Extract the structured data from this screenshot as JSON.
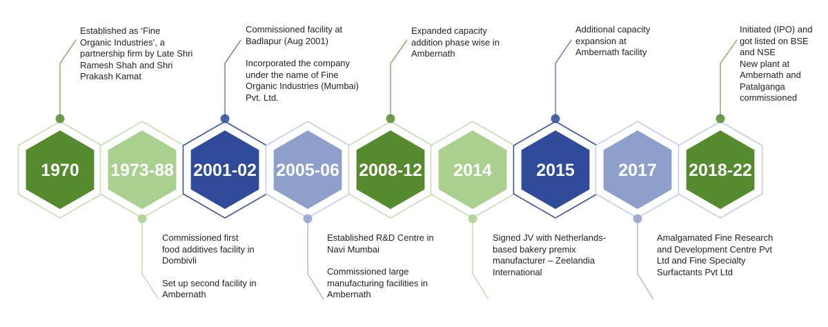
{
  "milestones": [
    {
      "year": "1970",
      "color": "#568a2e",
      "year_color": "#ffffff",
      "position": "top",
      "notes": [
        "Established as ‘Fine\nOrganic  Industries’, a\npartnership firm by Late Shri\nRamesh Shah and Shri\nPrakash Kamat"
      ]
    },
    {
      "year": "1973-88",
      "color": "#a9d08e",
      "year_color": "#ffffff",
      "position": "bottom",
      "notes": [
        "Commissioned  first\nfood additives facility in\nDombivli",
        "Set up second facility in\nAmbernath"
      ]
    },
    {
      "year": "2001-02",
      "color": "#2f4b9a",
      "year_color": "#ffffff",
      "position": "top",
      "notes": [
        "Commissioned facility at\nBadlapur (Aug 2001)",
        "Incorporated the company\nunder the name of Fine\nOrganic Industries (Mumbai)\nPvt. Ltd."
      ]
    },
    {
      "year": "2005-06",
      "color": "#8f9fcc",
      "year_color": "#ffffff",
      "position": "bottom",
      "notes": [
        "Established R&D Centre in\nNavi Mumbai",
        "Commissioned large\nmanufacturing facilities in\nAmbernath"
      ]
    },
    {
      "year": "2008-12",
      "color": "#568a2e",
      "year_color": "#ffffff",
      "position": "top",
      "notes": [
        "Expanded capacity\naddition phase wise in\nAmbernath"
      ]
    },
    {
      "year": "2014",
      "color": "#a9d08e",
      "year_color": "#ffffff",
      "position": "bottom",
      "notes": [
        "Signed JV with Netherlands-\nbased bakery premix\nmanufacturer – Zeelandia\nInternational"
      ]
    },
    {
      "year": "2015",
      "color": "#2f4b9a",
      "year_color": "#ffffff",
      "position": "top",
      "notes": [
        "Additional capacity\nexpansion at\nAmbernath facility"
      ]
    },
    {
      "year": "2017",
      "color": "#8f9fcc",
      "year_color": "#ffffff",
      "position": "bottom",
      "notes": [
        "Amalgamated Fine Research\nand Development Centre Pvt\nLtd and Fine Specialty\nSurfactants Pvt Ltd"
      ]
    },
    {
      "year": "2018-22",
      "color": "#568a2e",
      "year_color": "#ffffff",
      "position": "top",
      "notes": [
        "Initiated (IPO) and\ngot listed on BSE\nand NSE\nNew plant at\nAmbernath and\nPatalganga\ncommissioned"
      ]
    }
  ],
  "outline_colors": {
    "green": "#c5dcb1",
    "blue": "#3a4f99",
    "lightblue": "#c3cce6"
  }
}
